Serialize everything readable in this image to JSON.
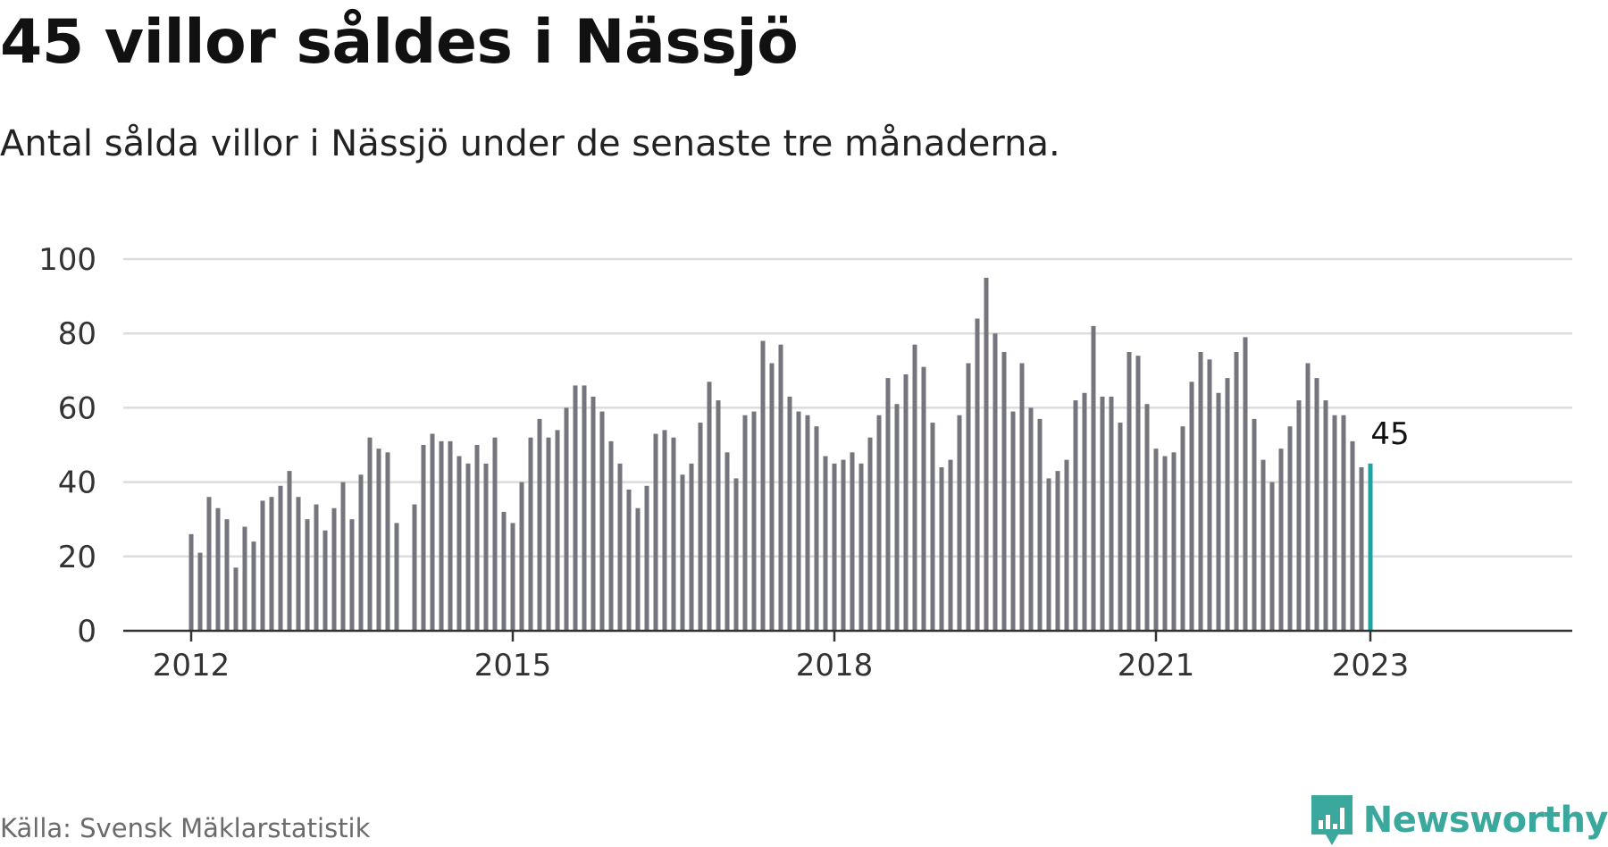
{
  "title": "45 villor såldes i Nässjö",
  "subtitle": "Antal sålda villor i Nässjö under de senaste tre månaderna.",
  "source": "Källa: Svensk Mäklarstatistik",
  "brand": "Newsworthy",
  "colors": {
    "bar": "#75757d",
    "highlight": "#1aa3a0",
    "grid": "#dcdcdc",
    "axis": "#333333",
    "brand": "#3aa89c"
  },
  "chart_data": {
    "type": "bar",
    "ylim": [
      0,
      100
    ],
    "yticks": [
      0,
      20,
      40,
      60,
      80,
      100
    ],
    "xticks": [
      "2012",
      "2015",
      "2018",
      "2021",
      "2023"
    ],
    "xtick_index": [
      0,
      36,
      72,
      108,
      132
    ],
    "highlight_label": "45",
    "grid": true,
    "values": [
      26,
      21,
      36,
      33,
      30,
      17,
      28,
      24,
      35,
      36,
      39,
      43,
      36,
      30,
      34,
      27,
      33,
      40,
      30,
      42,
      52,
      49,
      48,
      29,
      null,
      34,
      50,
      53,
      51,
      51,
      47,
      45,
      50,
      45,
      52,
      32,
      29,
      40,
      52,
      57,
      52,
      54,
      60,
      66,
      66,
      63,
      59,
      51,
      45,
      38,
      33,
      39,
      53,
      54,
      52,
      42,
      45,
      56,
      67,
      62,
      48,
      41,
      58,
      59,
      78,
      72,
      77,
      63,
      59,
      58,
      55,
      47,
      45,
      46,
      48,
      45,
      52,
      58,
      68,
      61,
      69,
      77,
      71,
      56,
      44,
      46,
      58,
      72,
      84,
      95,
      80,
      75,
      59,
      72,
      60,
      57,
      41,
      43,
      46,
      62,
      64,
      82,
      63,
      63,
      56,
      75,
      74,
      61,
      49,
      47,
      48,
      55,
      67,
      75,
      73,
      64,
      68,
      75,
      79,
      57,
      46,
      40,
      49,
      55,
      62,
      72,
      68,
      62,
      58,
      58,
      51,
      44,
      45
    ]
  }
}
